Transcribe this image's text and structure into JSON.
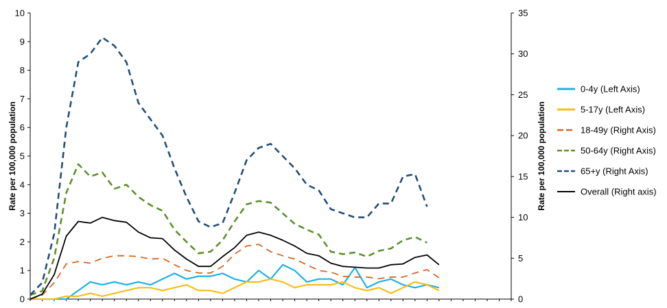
{
  "chart_data": {
    "type": "line",
    "x_count": 41,
    "y_left": {
      "label": "Rate per 100,000 population",
      "min": 0,
      "max": 10,
      "ticks": [
        0,
        1,
        2,
        3,
        4,
        5,
        6,
        7,
        8,
        9,
        10
      ]
    },
    "y_right": {
      "label": "Rate per 100,000 population",
      "min": 0,
      "max": 35,
      "ticks": [
        0,
        5,
        10,
        15,
        20,
        25,
        30,
        35
      ]
    },
    "grid": false,
    "legend_position": "right",
    "series": [
      {
        "name": "0-4y (Left Axis)",
        "axis": "left",
        "color": "#1cb0e8",
        "dash": "solid",
        "values": [
          0,
          0,
          0,
          0,
          0.3,
          0.6,
          0.5,
          0.6,
          0.5,
          0.6,
          0.5,
          0.7,
          0.9,
          0.7,
          0.8,
          0.8,
          0.9,
          0.7,
          0.6,
          1.0,
          0.7,
          1.2,
          1.0,
          0.6,
          0.7,
          0.7,
          0.5,
          1.1,
          0.4,
          0.6,
          0.7,
          0.5,
          0.4,
          0.5,
          0.4
        ]
      },
      {
        "name": "5-17y (Left Axis)",
        "axis": "left",
        "color": "#f7be17",
        "dash": "solid",
        "values": [
          0,
          0,
          0,
          0.1,
          0.1,
          0.2,
          0.1,
          0.2,
          0.3,
          0.4,
          0.4,
          0.3,
          0.4,
          0.5,
          0.3,
          0.3,
          0.2,
          0.4,
          0.6,
          0.6,
          0.7,
          0.6,
          0.4,
          0.5,
          0.5,
          0.5,
          0.6,
          0.4,
          0.3,
          0.4,
          0.2,
          0.4,
          0.6,
          0.5,
          0.3
        ]
      },
      {
        "name": "18-49y (Right Axis)",
        "axis": "right",
        "color": "#d4651f",
        "dash": "long",
        "values": [
          0,
          0.5,
          2,
          4.3,
          4.6,
          4.4,
          5,
          5.3,
          5.3,
          5.2,
          4.9,
          5,
          4.2,
          3.5,
          3.2,
          3.2,
          4,
          5.5,
          6.5,
          6.7,
          5.8,
          5.3,
          4.9,
          4.2,
          3.5,
          3.3,
          2.8,
          2.7,
          2.7,
          2.5,
          2.7,
          2.7,
          3.2,
          3.6,
          2.6
        ]
      },
      {
        "name": "50-64y (Right Axis)",
        "axis": "right",
        "color": "#5c8f2b",
        "dash": "dash",
        "values": [
          0.5,
          1,
          5,
          13,
          16.5,
          15,
          15.5,
          13.5,
          14,
          12.5,
          11.5,
          10.8,
          8.5,
          7,
          5.6,
          5.8,
          7.2,
          9.5,
          11.6,
          12,
          11.8,
          10.5,
          9.2,
          8.5,
          7.9,
          5.8,
          5.5,
          5.7,
          5.2,
          5.9,
          6.2,
          7.2,
          7.6,
          6.9
        ]
      },
      {
        "name": "65+y (Right Axis)",
        "axis": "right",
        "color": "#1f4e79",
        "dash": "dash",
        "values": [
          0.5,
          2,
          8,
          21,
          29,
          30,
          32,
          31,
          29,
          24,
          22,
          20,
          16,
          12.5,
          9.5,
          8.8,
          9.3,
          13,
          17,
          18.5,
          19,
          17.5,
          16,
          14,
          13.3,
          11,
          10.5,
          10,
          10,
          11.7,
          11.7,
          15,
          15.3,
          11.3
        ]
      },
      {
        "name": "Overall (Right axis)",
        "axis": "right",
        "color": "#000000",
        "dash": "solid",
        "values": [
          0,
          0.6,
          3,
          7.7,
          9.5,
          9.3,
          10,
          9.6,
          9.4,
          8.2,
          7.5,
          7.4,
          6,
          4.9,
          4,
          4,
          5.2,
          6.3,
          7.8,
          8.2,
          7.8,
          7.2,
          6.5,
          5.6,
          5.3,
          4.4,
          4,
          3.9,
          3.8,
          3.8,
          4.2,
          4.3,
          5.1,
          5.4,
          4.2
        ]
      }
    ]
  }
}
